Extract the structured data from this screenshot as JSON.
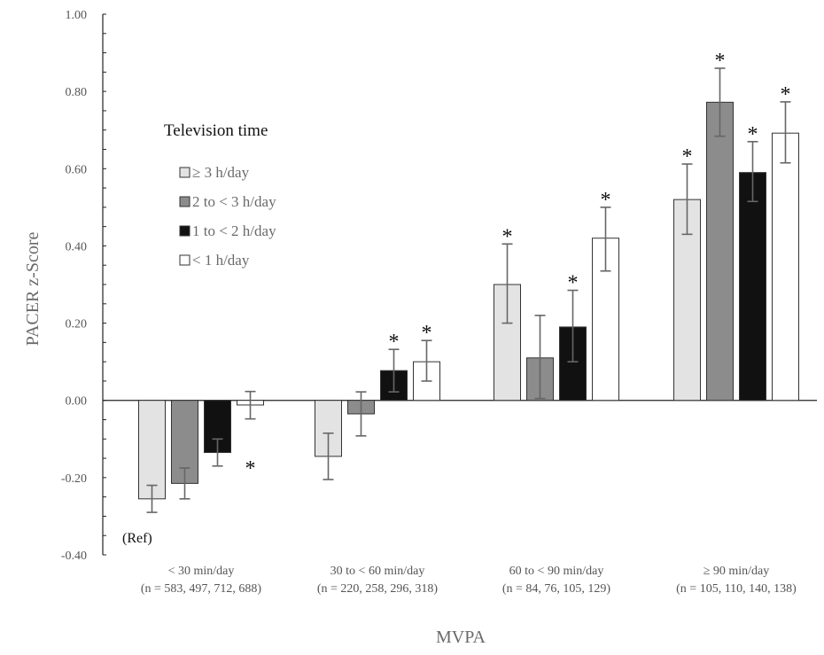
{
  "chart_data": {
    "type": "bar",
    "ylabel": "PACER z-Score",
    "xlabel": "MVPA",
    "ylim": [
      -0.4,
      1.0
    ],
    "yticks": [
      1.0,
      0.8,
      0.6,
      0.4,
      0.2,
      0.0,
      -0.2,
      -0.4
    ],
    "ytick_labels": [
      "1.00",
      "0.80",
      "0.60",
      "0.40",
      "0.20",
      "0.00",
      "-0.20",
      "-0.40"
    ],
    "categories": [
      {
        "label": "< 30 min/day",
        "n": "(n = 583, 497, 712, 688)"
      },
      {
        "label": "30 to < 60 min/day",
        "n": "(n = 220, 258, 296, 318)"
      },
      {
        "label": "60 to < 90 min/day",
        "n": "(n = 84, 76, 105, 129)"
      },
      {
        "label": "≥ 90 min/day",
        "n": "(n = 105, 110, 140, 138)"
      }
    ],
    "legend": {
      "title": "Television time",
      "placement": "upper-left"
    },
    "series": [
      {
        "name": "≥ 3 h/day",
        "color": "#e3e3e3",
        "values": [
          -0.255,
          -0.145,
          0.3,
          0.52
        ],
        "err_low": [
          -0.29,
          -0.205,
          0.2,
          0.43
        ],
        "err_high": [
          -0.22,
          -0.085,
          0.405,
          0.612
        ],
        "significant": [
          false,
          false,
          true,
          true
        ]
      },
      {
        "name": "2 to < 3 h/day",
        "color": "#8c8c8c",
        "values": [
          -0.215,
          -0.035,
          0.11,
          0.772
        ],
        "err_low": [
          -0.255,
          -0.092,
          0.005,
          0.684
        ],
        "err_high": [
          -0.175,
          0.022,
          0.22,
          0.86
        ],
        "significant": [
          false,
          false,
          false,
          true
        ]
      },
      {
        "name": "1 to < 2 h/day",
        "color": "#111111",
        "values": [
          -0.135,
          0.077,
          0.19,
          0.59
        ],
        "err_low": [
          -0.17,
          0.022,
          0.1,
          0.515
        ],
        "err_high": [
          -0.1,
          0.132,
          0.285,
          0.67
        ],
        "significant": [
          false,
          true,
          true,
          true
        ]
      },
      {
        "name": "< 1 h/day",
        "color": "#ffffff",
        "values": [
          -0.012,
          0.1,
          0.42,
          0.692
        ],
        "err_low": [
          -0.048,
          0.05,
          0.335,
          0.615
        ],
        "err_high": [
          0.023,
          0.155,
          0.5,
          0.773
        ],
        "significant": [
          true,
          true,
          true,
          true
        ]
      }
    ],
    "significance_marker": "*",
    "annotations": [
      "(Ref)"
    ]
  }
}
